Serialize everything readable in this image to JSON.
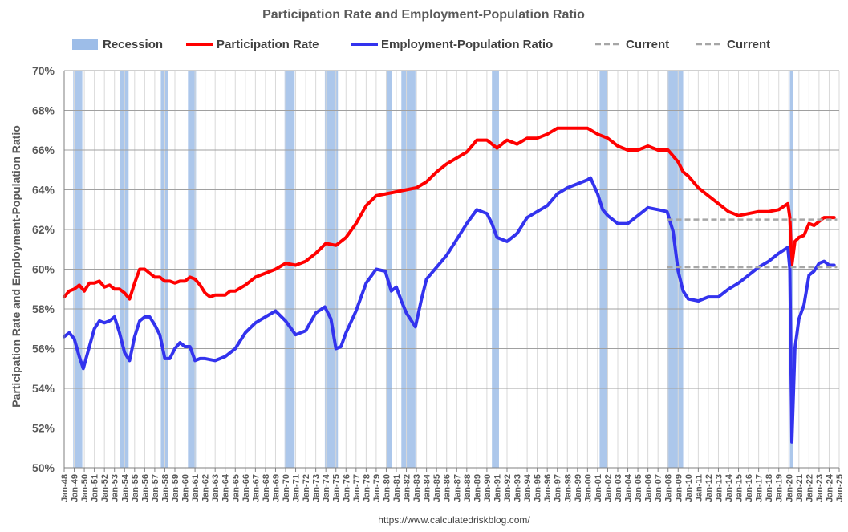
{
  "chart_data": {
    "type": "line",
    "title": "Participation Rate and Employment-Population Ratio",
    "ylabel": "Participation Rate and Employment-Population Ratio",
    "xlabel": "",
    "source": "https://www.calculatedriskblog.com/",
    "ylim": [
      50,
      70
    ],
    "xlim": [
      1948,
      2025
    ],
    "y_ticks": [
      50,
      52,
      54,
      56,
      58,
      60,
      62,
      64,
      66,
      68,
      70
    ],
    "y_tick_labels": [
      "50%",
      "52%",
      "54%",
      "56%",
      "58%",
      "60%",
      "62%",
      "64%",
      "66%",
      "68%",
      "70%"
    ],
    "x_tick_labels": [
      "Jan-48",
      "Jan-49",
      "Jan-50",
      "Jan-51",
      "Jan-52",
      "Jan-53",
      "Jan-54",
      "Jan-55",
      "Jan-56",
      "Jan-57",
      "Jan-58",
      "Jan-59",
      "Jan-60",
      "Jan-61",
      "Jan-62",
      "Jan-63",
      "Jan-64",
      "Jan-65",
      "Jan-66",
      "Jan-67",
      "Jan-68",
      "Jan-69",
      "Jan-70",
      "Jan-71",
      "Jan-72",
      "Jan-73",
      "Jan-74",
      "Jan-75",
      "Jan-76",
      "Jan-77",
      "Jan-78",
      "Jan-79",
      "Jan-80",
      "Jan-81",
      "Jan-82",
      "Jan-83",
      "Jan-84",
      "Jan-85",
      "Jan-86",
      "Jan-87",
      "Jan-88",
      "Jan-89",
      "Jan-90",
      "Jan-91",
      "Jan-92",
      "Jan-93",
      "Jan-94",
      "Jan-95",
      "Jan-96",
      "Jan-97",
      "Jan-98",
      "Jan-99",
      "Jan-00",
      "Jan-01",
      "Jan-02",
      "Jan-03",
      "Jan-04",
      "Jan-05",
      "Jan-06",
      "Jan-07",
      "Jan-08",
      "Jan-09",
      "Jan-10",
      "Jan-11",
      "Jan-12",
      "Jan-13",
      "Jan-14",
      "Jan-15",
      "Jan-16",
      "Jan-17",
      "Jan-18",
      "Jan-19",
      "Jan-20",
      "Jan-21",
      "Jan-22",
      "Jan-23",
      "Jan-24",
      "Jan-25"
    ],
    "grid": true,
    "legend_position": "top",
    "legend": [
      {
        "label": "Recession",
        "kind": "band",
        "color": "#9dbde8"
      },
      {
        "label": "Participation Rate",
        "kind": "line",
        "color": "#ff0000"
      },
      {
        "label": "Employment-Population Ratio",
        "kind": "line",
        "color": "#3333ee"
      },
      {
        "label": "Current",
        "kind": "dash",
        "color": "#a6a6a6"
      },
      {
        "label": "Current",
        "kind": "dash",
        "color": "#a6a6a6"
      }
    ],
    "recessions": [
      [
        1948.9,
        1949.8
      ],
      [
        1953.5,
        1954.4
      ],
      [
        1957.6,
        1958.3
      ],
      [
        1960.3,
        1961.1
      ],
      [
        1969.9,
        1970.9
      ],
      [
        1973.9,
        1975.2
      ],
      [
        1980.0,
        1980.6
      ],
      [
        1981.5,
        1982.9
      ],
      [
        1990.5,
        1991.2
      ],
      [
        2001.2,
        2001.9
      ],
      [
        2007.9,
        2009.5
      ],
      [
        2020.1,
        2020.4
      ]
    ],
    "current_lines": [
      {
        "label": "Current",
        "y": 62.5,
        "x_start": 2007.9,
        "x_end": 2024.8
      },
      {
        "label": "Current",
        "y": 60.1,
        "x_start": 2007.9,
        "x_end": 2024.8
      }
    ],
    "series": [
      {
        "name": "Participation Rate",
        "color": "#ff0000",
        "x": [
          1948.0,
          1948.5,
          1949.0,
          1949.5,
          1950.0,
          1950.5,
          1951.0,
          1951.5,
          1952.0,
          1952.5,
          1953.0,
          1953.5,
          1954.0,
          1954.5,
          1955.0,
          1955.5,
          1956.0,
          1956.5,
          1957.0,
          1957.5,
          1958.0,
          1958.5,
          1959.0,
          1959.5,
          1960.0,
          1960.5,
          1961.0,
          1961.5,
          1962.0,
          1962.5,
          1963.0,
          1963.5,
          1964.0,
          1964.5,
          1965.0,
          1966.0,
          1967.0,
          1968.0,
          1969.0,
          1970.0,
          1971.0,
          1972.0,
          1973.0,
          1974.0,
          1975.0,
          1976.0,
          1977.0,
          1978.0,
          1979.0,
          1980.0,
          1981.0,
          1982.0,
          1983.0,
          1984.0,
          1985.0,
          1986.0,
          1987.0,
          1988.0,
          1989.0,
          1990.0,
          1991.0,
          1992.0,
          1993.0,
          1994.0,
          1995.0,
          1996.0,
          1997.0,
          1998.0,
          1999.0,
          2000.0,
          2001.0,
          2002.0,
          2003.0,
          2004.0,
          2005.0,
          2006.0,
          2007.0,
          2008.0,
          2009.0,
          2009.5,
          2010.0,
          2011.0,
          2012.0,
          2013.0,
          2014.0,
          2015.0,
          2016.0,
          2017.0,
          2018.0,
          2019.0,
          2019.9,
          2020.1,
          2020.3,
          2020.6,
          2021.0,
          2021.5,
          2022.0,
          2022.5,
          2023.0,
          2023.5,
          2024.0,
          2024.5
        ],
        "values": [
          58.6,
          58.9,
          59.0,
          59.2,
          58.9,
          59.3,
          59.3,
          59.4,
          59.1,
          59.2,
          59.0,
          59.0,
          58.8,
          58.5,
          59.3,
          60.0,
          60.0,
          59.8,
          59.6,
          59.6,
          59.4,
          59.4,
          59.3,
          59.4,
          59.4,
          59.6,
          59.5,
          59.2,
          58.8,
          58.6,
          58.7,
          58.7,
          58.7,
          58.9,
          58.9,
          59.2,
          59.6,
          59.8,
          60.0,
          60.3,
          60.2,
          60.4,
          60.8,
          61.3,
          61.2,
          61.6,
          62.3,
          63.2,
          63.7,
          63.8,
          63.9,
          64.0,
          64.1,
          64.4,
          64.9,
          65.3,
          65.6,
          65.9,
          66.5,
          66.5,
          66.1,
          66.5,
          66.3,
          66.6,
          66.6,
          66.8,
          67.1,
          67.1,
          67.1,
          67.1,
          66.8,
          66.6,
          66.2,
          66.0,
          66.0,
          66.2,
          66.0,
          66.0,
          65.4,
          64.9,
          64.7,
          64.1,
          63.7,
          63.3,
          62.9,
          62.7,
          62.8,
          62.9,
          62.9,
          63.0,
          63.3,
          62.6,
          60.2,
          61.4,
          61.6,
          61.7,
          62.3,
          62.2,
          62.4,
          62.6,
          62.6,
          62.6
        ]
      },
      {
        "name": "Employment-Population Ratio",
        "color": "#3333ee",
        "x": [
          1948.0,
          1948.5,
          1949.0,
          1949.5,
          1949.9,
          1950.5,
          1951.0,
          1951.5,
          1952.0,
          1952.5,
          1953.0,
          1953.5,
          1954.0,
          1954.5,
          1955.0,
          1955.5,
          1956.0,
          1956.5,
          1957.0,
          1957.5,
          1958.0,
          1958.5,
          1959.0,
          1959.5,
          1960.0,
          1960.5,
          1961.0,
          1961.5,
          1962.0,
          1963.0,
          1964.0,
          1965.0,
          1966.0,
          1967.0,
          1968.0,
          1969.0,
          1970.0,
          1971.0,
          1972.0,
          1973.0,
          1973.9,
          1974.5,
          1975.0,
          1975.5,
          1976.0,
          1977.0,
          1978.0,
          1979.0,
          1979.9,
          1980.5,
          1981.0,
          1981.5,
          1982.0,
          1982.9,
          1983.5,
          1984.0,
          1985.0,
          1986.0,
          1987.0,
          1988.0,
          1989.0,
          1990.0,
          1990.5,
          1991.0,
          1992.0,
          1993.0,
          1994.0,
          1995.0,
          1996.0,
          1997.0,
          1998.0,
          1999.0,
          2000.0,
          2000.3,
          2001.0,
          2001.5,
          2002.0,
          2003.0,
          2004.0,
          2005.0,
          2006.0,
          2007.0,
          2007.9,
          2008.5,
          2009.0,
          2009.5,
          2010.0,
          2011.0,
          2012.0,
          2013.0,
          2014.0,
          2015.0,
          2016.0,
          2017.0,
          2018.0,
          2019.0,
          2019.9,
          2020.1,
          2020.3,
          2020.6,
          2021.0,
          2021.5,
          2022.0,
          2022.5,
          2023.0,
          2023.5,
          2024.0,
          2024.5
        ],
        "values": [
          56.6,
          56.8,
          56.5,
          55.6,
          55.0,
          56.1,
          57.0,
          57.4,
          57.3,
          57.4,
          57.6,
          56.8,
          55.8,
          55.4,
          56.6,
          57.4,
          57.6,
          57.6,
          57.2,
          56.7,
          55.5,
          55.5,
          56.0,
          56.3,
          56.1,
          56.1,
          55.4,
          55.5,
          55.5,
          55.4,
          55.6,
          56.0,
          56.8,
          57.3,
          57.6,
          57.9,
          57.4,
          56.7,
          56.9,
          57.8,
          58.1,
          57.5,
          56.0,
          56.1,
          56.8,
          57.9,
          59.3,
          60.0,
          59.9,
          58.9,
          59.1,
          58.4,
          57.8,
          57.1,
          58.5,
          59.5,
          60.1,
          60.7,
          61.5,
          62.3,
          63.0,
          62.8,
          62.3,
          61.6,
          61.4,
          61.8,
          62.6,
          62.9,
          63.2,
          63.8,
          64.1,
          64.3,
          64.5,
          64.6,
          63.8,
          63.0,
          62.7,
          62.3,
          62.3,
          62.7,
          63.1,
          63.0,
          62.9,
          61.9,
          59.9,
          58.9,
          58.5,
          58.4,
          58.6,
          58.6,
          59.0,
          59.3,
          59.7,
          60.1,
          60.4,
          60.8,
          61.1,
          60.0,
          51.3,
          56.0,
          57.5,
          58.2,
          59.7,
          59.9,
          60.3,
          60.4,
          60.2,
          60.2
        ]
      }
    ]
  }
}
